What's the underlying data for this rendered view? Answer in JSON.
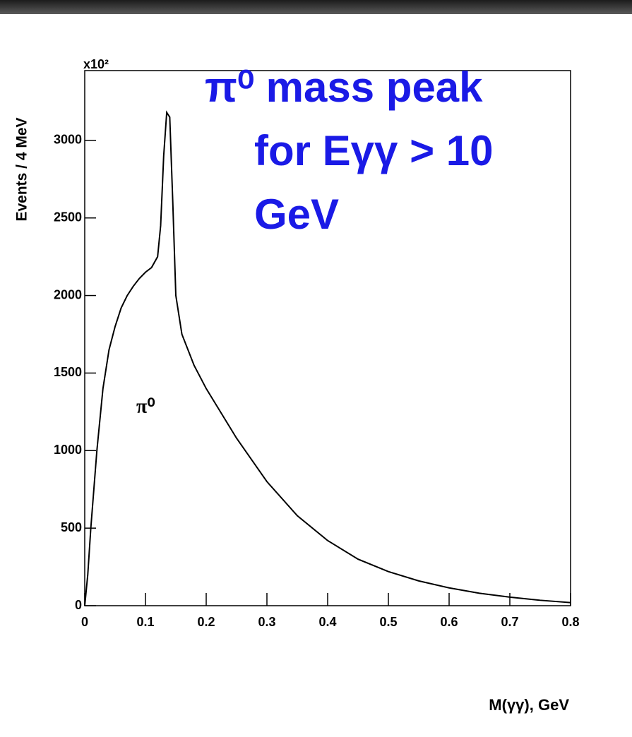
{
  "chart_data": {
    "type": "line",
    "title_lines": [
      "π⁰ mass peak",
      "for Eγγ > 10",
      "GeV"
    ],
    "y_multiplier": "x10²",
    "y_label": "Events / 4 MeV",
    "x_label": "M(γγ), GeV",
    "annotation": "π⁰",
    "color": "#000000",
    "title_color": "#1a1ae6",
    "x": [
      0,
      0.005,
      0.01,
      0.02,
      0.03,
      0.04,
      0.05,
      0.06,
      0.07,
      0.08,
      0.09,
      0.1,
      0.11,
      0.12,
      0.125,
      0.13,
      0.135,
      0.14,
      0.145,
      0.15,
      0.16,
      0.18,
      0.2,
      0.25,
      0.3,
      0.35,
      0.4,
      0.45,
      0.5,
      0.55,
      0.6,
      0.65,
      0.7,
      0.75,
      0.8
    ],
    "values": [
      0,
      200,
      500,
      1000,
      1400,
      1650,
      1800,
      1920,
      2000,
      2060,
      2110,
      2150,
      2180,
      2250,
      2450,
      2900,
      3180,
      3150,
      2600,
      2000,
      1750,
      1550,
      1400,
      1080,
      800,
      580,
      420,
      300,
      220,
      160,
      115,
      80,
      55,
      35,
      20
    ],
    "xlim": [
      0,
      0.8
    ],
    "xticks": [
      0,
      0.1,
      0.2,
      0.3,
      0.4,
      0.5,
      0.6,
      0.7,
      0.8
    ],
    "ylim": [
      0,
      3450
    ],
    "yticks": [
      0,
      500,
      1000,
      1500,
      2000,
      2500,
      3000
    ],
    "grid": false
  }
}
